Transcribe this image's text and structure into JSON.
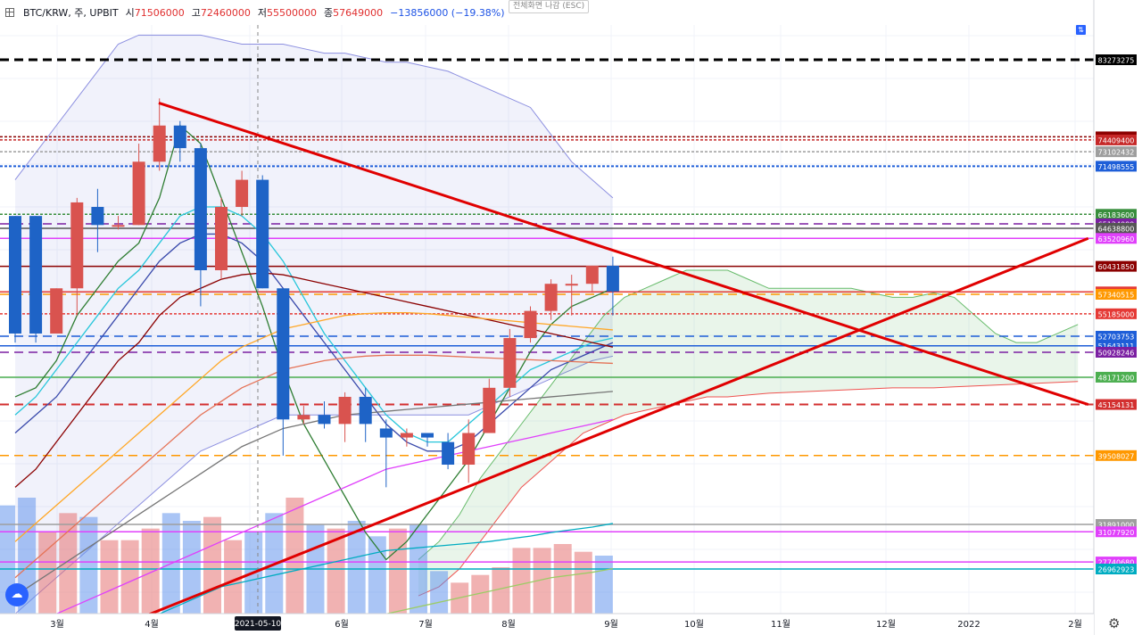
{
  "header": {
    "symbol": "BTC/KRW, 주, UPBIT",
    "open_label": "시",
    "open": "71506000",
    "high_label": "고",
    "high": "72460000",
    "low_label": "저",
    "low": "55500000",
    "close_label": "종",
    "close": "57649000",
    "change": "−13856000 (−19.38%)",
    "fullscreen_exit": "전체화면 나감 (ESC)"
  },
  "icons": {
    "menu": "menu-icon",
    "logo": "tradingview-logo-icon",
    "settings": "gear-icon",
    "scale": "scale-toggle-icon"
  },
  "chart_data": {
    "type": "candlestick",
    "title": "",
    "ylim": [
      20000000,
      91000000
    ],
    "x_tick_labels": [
      "3월",
      "4월",
      "5월",
      "6월",
      "7월",
      "8월",
      "9월",
      "10월",
      "11월",
      "12월",
      "2022",
      "2월"
    ],
    "crosshair_date": "2021-05-10",
    "candles": [
      {
        "o": 66000000,
        "h": 66000000,
        "l": 52000000,
        "c": 53000000
      },
      {
        "o": 66000000,
        "h": 66000000,
        "l": 52000000,
        "c": 53000000
      },
      {
        "o": 53000000,
        "h": 58000000,
        "l": 53000000,
        "c": 58000000
      },
      {
        "o": 58000000,
        "h": 68000000,
        "l": 55000000,
        "c": 67500000
      },
      {
        "o": 67000000,
        "h": 69000000,
        "l": 62000000,
        "c": 65000000
      },
      {
        "o": 65000000,
        "h": 66000000,
        "l": 64500000,
        "c": 65000000
      },
      {
        "o": 65000000,
        "h": 74000000,
        "l": 65000000,
        "c": 72000000
      },
      {
        "o": 72000000,
        "h": 79000000,
        "l": 71000000,
        "c": 76000000
      },
      {
        "o": 76000000,
        "h": 76500000,
        "l": 72000000,
        "c": 73500000
      },
      {
        "o": 73500000,
        "h": 74000000,
        "l": 56000000,
        "c": 60000000
      },
      {
        "o": 60000000,
        "h": 68000000,
        "l": 59000000,
        "c": 67000000
      },
      {
        "o": 67000000,
        "h": 71000000,
        "l": 66000000,
        "c": 70000000
      },
      {
        "o": 70000000,
        "h": 70500000,
        "l": 58000000,
        "c": 58000000
      },
      {
        "o": 58000000,
        "h": 58000000,
        "l": 39500000,
        "c": 43500000
      },
      {
        "o": 43500000,
        "h": 45000000,
        "l": 43000000,
        "c": 44000000
      },
      {
        "o": 44000000,
        "h": 45500000,
        "l": 42500000,
        "c": 43000000
      },
      {
        "o": 43000000,
        "h": 46500000,
        "l": 41000000,
        "c": 46000000
      },
      {
        "o": 46000000,
        "h": 47000000,
        "l": 41000000,
        "c": 43000000
      },
      {
        "o": 42500000,
        "h": 43500000,
        "l": 36000000,
        "c": 41500000
      },
      {
        "o": 41500000,
        "h": 42500000,
        "l": 40500000,
        "c": 42000000
      },
      {
        "o": 42000000,
        "h": 42000000,
        "l": 40500000,
        "c": 41500000
      },
      {
        "o": 41000000,
        "h": 42000000,
        "l": 38000000,
        "c": 38500000
      },
      {
        "o": 38500000,
        "h": 43500000,
        "l": 36500000,
        "c": 42000000
      },
      {
        "o": 42000000,
        "h": 48000000,
        "l": 42000000,
        "c": 47000000
      },
      {
        "o": 47000000,
        "h": 53500000,
        "l": 46000000,
        "c": 52500000
      },
      {
        "o": 52500000,
        "h": 56000000,
        "l": 52000000,
        "c": 55500000
      },
      {
        "o": 55500000,
        "h": 59000000,
        "l": 54500000,
        "c": 58500000
      },
      {
        "o": 58500000,
        "h": 59500000,
        "l": 55000000,
        "c": 58500000
      },
      {
        "o": 58500000,
        "h": 60500000,
        "l": 57500000,
        "c": 60500000
      },
      {
        "o": 60500000,
        "h": 61500000,
        "l": 55000000,
        "c": 57649000
      }
    ],
    "volumes": [
      28,
      30,
      21,
      26,
      25,
      19,
      19,
      22,
      26,
      24,
      25,
      19,
      21,
      26,
      30,
      23,
      22,
      24,
      20,
      22,
      23,
      11,
      8,
      10,
      12,
      17,
      17,
      18,
      16,
      15
    ],
    "levels": [
      {
        "value": 83273275,
        "label": "83273275",
        "color": "#000000",
        "style": "dashed"
      },
      {
        "value": 74749750,
        "label": "74749750",
        "color": "#8b0000",
        "style": "dotted"
      },
      {
        "value": 74409400,
        "label": "74409400",
        "color": "#c62828",
        "style": "dotted"
      },
      {
        "value": 73102432,
        "label": "73102432",
        "color": "#9e9e9e",
        "style": "dotted"
      },
      {
        "value": 71498555,
        "label": "71498555",
        "color": "#1e5ed8",
        "style": "dotted"
      },
      {
        "value": 66183600,
        "label": "66183600",
        "color": "#388e3c",
        "style": "dotted"
      },
      {
        "value": 65124989,
        "label": "65124989",
        "color": "#7b1fa2",
        "style": "dashed"
      },
      {
        "value": 64638800,
        "label": "64638800",
        "color": "#555555",
        "style": "solid"
      },
      {
        "value": 63520960,
        "label": "63520960",
        "color": "#e040fb",
        "style": "solid"
      },
      {
        "value": 60431850,
        "label": "60431850",
        "color": "#8b0000",
        "style": "solid"
      },
      {
        "value": 57603933,
        "label": "57603933",
        "color": "#e53935",
        "style": "solid"
      },
      {
        "value": 57340515,
        "label": "57340515",
        "color": "#ff9800",
        "style": "dashed"
      },
      {
        "value": 55185000,
        "label": "55185000",
        "color": "#e53935",
        "style": "dotted"
      },
      {
        "value": 52703753,
        "label": "52703753",
        "color": "#1e5ed8",
        "style": "dashed"
      },
      {
        "value": 51643111,
        "label": "51643111",
        "color": "#1e5ed8",
        "style": "solid"
      },
      {
        "value": 50928246,
        "label": "50928246",
        "color": "#7b1fa2",
        "style": "dashed"
      },
      {
        "value": 48171200,
        "label": "48171200",
        "color": "#4caf50",
        "style": "solid"
      },
      {
        "value": 45154131,
        "label": "45154131",
        "color": "#d32f2f",
        "style": "dashed"
      },
      {
        "value": 39508027,
        "label": "39508027",
        "color": "#ff9800",
        "style": "dashed"
      },
      {
        "value": 31891000,
        "label": "31891000",
        "color": "#9e9e9e",
        "style": "solid"
      },
      {
        "value": 31077920,
        "label": "31077920",
        "color": "#e040fb",
        "style": "solid"
      },
      {
        "value": 27740680,
        "label": "27740680",
        "color": "#e040fb",
        "style": "solid"
      },
      {
        "value": 26962923,
        "label": "26962923",
        "color": "#00acc1",
        "style": "solid"
      }
    ],
    "trendlines": [
      {
        "from": {
          "bar": 7.4,
          "value": 78500000
        },
        "to": {
          "bar": 52.5,
          "value": 45154131
        },
        "color": "#e00000",
        "width": 3
      },
      {
        "from": {
          "bar": 4.8,
          "value": 20000000
        },
        "to": {
          "bar": 52.5,
          "value": 63520960
        },
        "color": "#e00000",
        "width": 3
      }
    ],
    "moving_averages": [
      {
        "color": "#2e7d32",
        "values": [
          46,
          47,
          50,
          55,
          58,
          61,
          63,
          68,
          76,
          74,
          68,
          62,
          56,
          49,
          43,
          39,
          35,
          31,
          28,
          30,
          33,
          36,
          39,
          43,
          47,
          51,
          54,
          56,
          57,
          58
        ]
      },
      {
        "color": "#26c6da",
        "values": [
          44,
          46,
          49,
          52,
          55,
          58,
          60,
          63,
          66,
          67,
          67,
          66,
          64,
          61,
          57,
          53,
          50,
          47,
          44,
          42,
          41,
          41,
          43,
          45,
          47,
          49,
          50,
          51,
          52,
          52.5
        ]
      },
      {
        "color": "#3949ab",
        "values": [
          42,
          44,
          46,
          49,
          52,
          55,
          58,
          61,
          63,
          64,
          64,
          63,
          61,
          58,
          55,
          52,
          49,
          46,
          43,
          41,
          40,
          40,
          41,
          43,
          45,
          47,
          49,
          50,
          51,
          52
        ]
      },
      {
        "color": "#8b0000",
        "values": [
          36,
          38,
          41,
          44,
          47,
          50,
          52,
          55,
          57,
          58,
          59,
          59.5,
          59.7,
          59.5,
          59,
          58.5,
          58,
          57.5,
          57,
          56.5,
          56,
          55.5,
          55,
          54.5,
          54,
          53.5,
          53,
          52.5,
          52,
          51.5
        ]
      },
      {
        "color": "#ffa726",
        "values": [
          30,
          32,
          34,
          36,
          38,
          40,
          42,
          44,
          46,
          48,
          50,
          51.5,
          52.5,
          53.5,
          54,
          54.5,
          55,
          55.2,
          55.3,
          55.3,
          55.2,
          55,
          54.8,
          54.6,
          54.4,
          54.2,
          54,
          53.8,
          53.6,
          53.4
        ]
      },
      {
        "color": "#e57357",
        "values": [
          26,
          28,
          30,
          32,
          34,
          36,
          38,
          40,
          42,
          44,
          45.5,
          47,
          48,
          49,
          49.5,
          50,
          50.3,
          50.5,
          50.6,
          50.6,
          50.6,
          50.5,
          50.4,
          50.3,
          50.2,
          50.1,
          50,
          49.9,
          49.8,
          49.7
        ]
      },
      {
        "color": "#757575",
        "values": [
          24,
          25.5,
          27,
          28.5,
          30,
          31.5,
          33,
          34.5,
          36,
          37.5,
          39,
          40.5,
          41.5,
          42.5,
          43,
          43.5,
          44,
          44.2,
          44.4,
          44.6,
          44.8,
          45,
          45.2,
          45.4,
          45.6,
          45.8,
          46,
          46.2,
          46.4,
          46.6
        ]
      },
      {
        "color": "#e040fb",
        "values": [
          20,
          21,
          22,
          23,
          24,
          25,
          26,
          27,
          28,
          29,
          30,
          31,
          32,
          33,
          34,
          35,
          36,
          37,
          38,
          38.5,
          39,
          39.5,
          40,
          40.5,
          41,
          41.5,
          42,
          42.5,
          43,
          43.5
        ]
      },
      {
        "color": "#00acc1",
        "values": [
          null,
          null,
          null,
          null,
          null,
          20,
          21,
          22,
          23,
          24,
          25,
          25.5,
          26,
          26.5,
          27,
          27.5,
          28,
          28.5,
          29,
          29.2,
          29.4,
          29.6,
          29.8,
          30,
          30.3,
          30.6,
          31,
          31.3,
          31.6,
          32
        ]
      },
      {
        "color": "#9ccc65",
        "values": [
          null,
          null,
          null,
          null,
          null,
          null,
          null,
          null,
          null,
          null,
          null,
          null,
          null,
          null,
          20,
          20.5,
          21,
          21.5,
          22,
          22.5,
          23,
          23.5,
          24,
          24.5,
          25,
          25.5,
          26,
          26.3,
          26.6,
          27
        ]
      }
    ],
    "bollinger": {
      "upper": [
        70,
        73,
        76,
        79,
        82,
        85,
        86,
        86,
        86,
        86,
        85.5,
        85,
        85,
        85,
        84.5,
        84,
        84,
        83.5,
        83,
        83,
        82.5,
        82,
        81,
        80,
        79,
        78,
        75,
        72,
        70,
        68
      ],
      "lower": [
        22,
        24,
        26,
        28,
        30,
        32,
        34,
        36,
        38,
        40,
        41,
        42,
        43,
        44,
        44,
        44,
        44,
        44,
        44,
        44,
        44,
        44,
        44,
        45,
        46,
        47,
        48,
        49,
        50,
        50.5
      ]
    },
    "ichimoku_cloud": {
      "start_bar": 20,
      "span_a": [
        28,
        30,
        33,
        37,
        40,
        43,
        46,
        49,
        52,
        55,
        57,
        58,
        59,
        60,
        60,
        60,
        59,
        58,
        58,
        58,
        58,
        58,
        57.5,
        57,
        57,
        57.5,
        57,
        55,
        53,
        52,
        52,
        53,
        54
      ],
      "span_b": [
        24,
        25,
        27,
        30,
        33,
        36,
        38,
        40,
        42,
        43,
        44,
        44.5,
        45,
        45.5,
        46,
        46,
        46.2,
        46.4,
        46.5,
        46.6,
        46.7,
        46.8,
        46.9,
        47,
        47,
        47,
        47.1,
        47.2,
        47.3,
        47.4,
        47.5,
        47.6,
        47.7
      ]
    }
  }
}
